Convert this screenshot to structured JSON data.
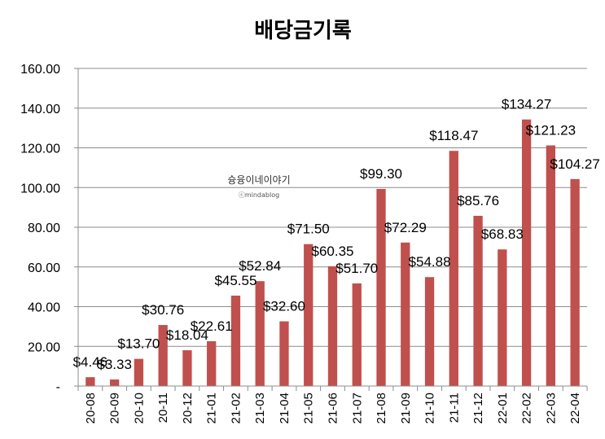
{
  "chart_data": {
    "type": "bar",
    "title": "배당금기록",
    "xlabel": "",
    "ylabel": "",
    "ylim": [
      0,
      160
    ],
    "yticks": [
      "-",
      "20.00",
      "40.00",
      "60.00",
      "80.00",
      "100.00",
      "120.00",
      "140.00",
      "160.00"
    ],
    "grid": true,
    "bar_color": "#c0504d",
    "categories": [
      "20-08",
      "20-09",
      "20-10",
      "20-11",
      "20-12",
      "21-01",
      "21-02",
      "21-03",
      "21-04",
      "21-05",
      "21-06",
      "21-07",
      "21-08",
      "21-09",
      "21-10",
      "21-11",
      "21-12",
      "22-01",
      "22-02",
      "22-03",
      "22-04"
    ],
    "values": [
      4.46,
      3.33,
      13.7,
      30.76,
      18.04,
      22.61,
      45.55,
      52.84,
      32.6,
      71.5,
      60.35,
      51.7,
      99.3,
      72.29,
      54.88,
      118.47,
      85.76,
      68.83,
      134.27,
      121.23,
      104.27
    ],
    "data_labels": [
      "$4.46",
      "$3.33",
      "$13.70",
      "$30.76",
      "$18.04",
      "$22.61",
      "$45.55",
      "$52.84",
      "$32.60",
      "$71.50",
      "$60.35",
      "$51.70",
      "$99.30",
      "$72.29",
      "$54.88",
      "$118.47",
      "$85.76",
      "$68.83",
      "$134.27",
      "$121.23",
      "$104.27"
    ]
  },
  "watermark": {
    "line1": "슝융이네이야기",
    "line2": "ⓒmindablog"
  }
}
